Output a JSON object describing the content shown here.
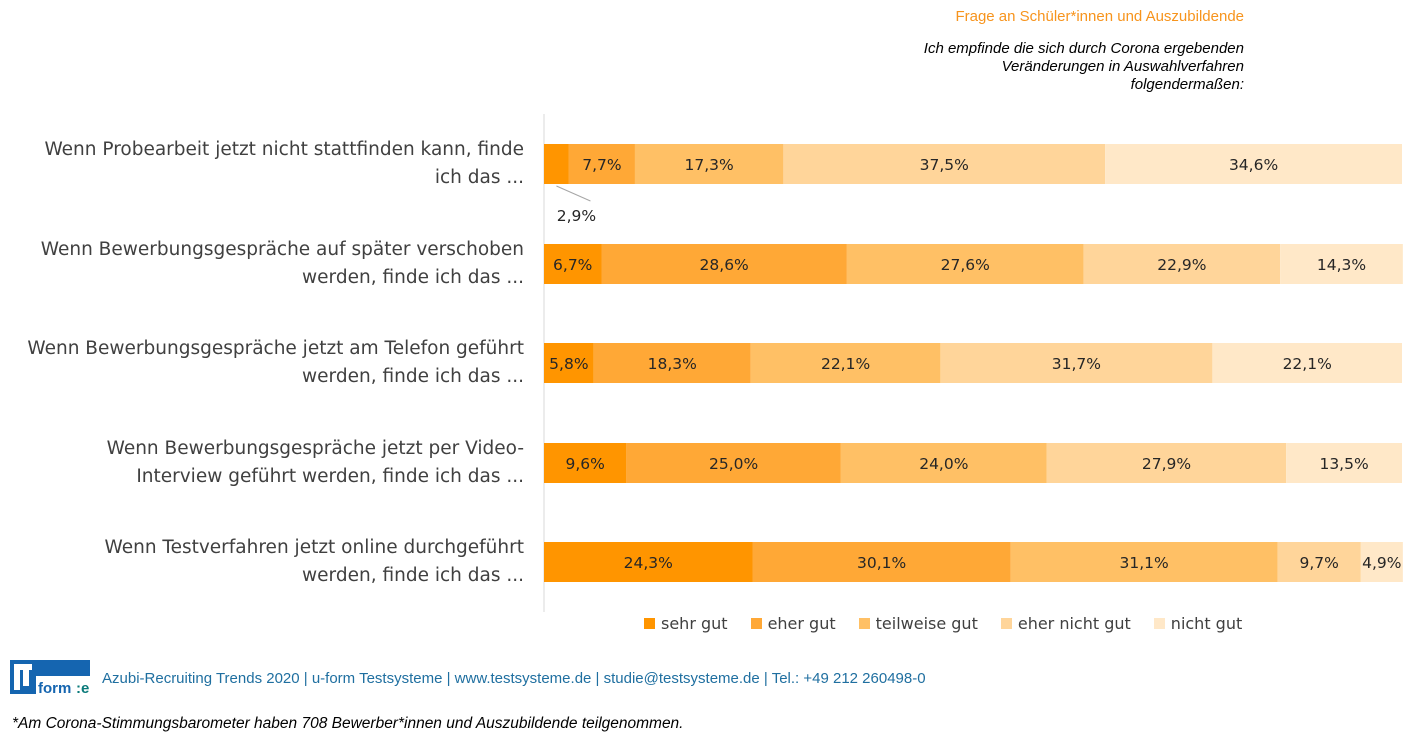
{
  "header": {
    "question_label": "Frage an Schüler*innen und Auszubildende",
    "statement": "Ich empfinde die sich durch Corona ergebenden\nVeränderungen in Auswahlverfahren\nfolgendermaßen:"
  },
  "chart_data": {
    "type": "bar",
    "orientation": "horizontal",
    "stacked": true,
    "categories": [
      "Wenn Probearbeit jetzt nicht stattfinden kann, finde ich das ...",
      "Wenn Bewerbungsgespräche auf später verschoben werden, finde ich das ...",
      "Wenn Bewerbungsgespräche jetzt am Telefon geführt werden, finde ich das ...",
      "Wenn Bewerbungsgespräche jetzt per Video-Interview geführt werden, finde ich das ...",
      "Wenn Testverfahren jetzt online durchgeführt werden, finde ich das ..."
    ],
    "category_lines": [
      [
        "Wenn Probearbeit jetzt nicht stattfinden kann, finde",
        "ich das ..."
      ],
      [
        "Wenn Bewerbungsgespräche auf später verschoben",
        "werden, finde ich das ..."
      ],
      [
        "Wenn Bewerbungsgespräche jetzt am Telefon geführt",
        "werden, finde ich das ..."
      ],
      [
        "Wenn Bewerbungsgespräche jetzt per Video-",
        "Interview geführt werden, finde ich das ..."
      ],
      [
        "Wenn Testverfahren jetzt online durchgeführt",
        "werden, finde ich das ..."
      ]
    ],
    "series": [
      {
        "name": "sehr gut",
        "color": "#ff9500",
        "values": [
          2.9,
          6.7,
          5.8,
          9.6,
          24.3
        ]
      },
      {
        "name": "eher gut",
        "color": "#ffa836",
        "values": [
          7.7,
          28.6,
          18.3,
          25.0,
          30.1
        ]
      },
      {
        "name": "teilweise gut",
        "color": "#ffc065",
        "values": [
          17.3,
          27.6,
          22.1,
          24.0,
          31.1
        ]
      },
      {
        "name": "eher nicht gut",
        "color": "#ffd59a",
        "values": [
          37.5,
          22.9,
          31.7,
          27.9,
          9.7
        ]
      },
      {
        "name": "nicht gut",
        "color": "#ffe8c8",
        "values": [
          34.6,
          14.3,
          22.1,
          13.5,
          4.9
        ]
      }
    ],
    "data_labels": [
      [
        "2,9%",
        "7,7%",
        "17,3%",
        "37,5%",
        "34,6%"
      ],
      [
        "6,7%",
        "28,6%",
        "27,6%",
        "22,9%",
        "14,3%"
      ],
      [
        "5,8%",
        "18,3%",
        "22,1%",
        "31,7%",
        "22,1%"
      ],
      [
        "9,6%",
        "25,0%",
        "24,0%",
        "27,9%",
        "13,5%"
      ],
      [
        "24,3%",
        "30,1%",
        "31,1%",
        "9,7%",
        "4,9%"
      ]
    ],
    "xlim": [
      0,
      100
    ],
    "legend_position": "bottom",
    "grid": false
  },
  "footer": {
    "logo_text": "uform:e",
    "info": "Azubi-Recruiting Trends 2020 | u-form Testsysteme | www.testsysteme.de | studie@testsysteme.de | Tel.: +49 212 260498-0",
    "footnote": "*Am Corona-Stimmungsbarometer haben 708 Bewerber*innen und Auszubildende teilgenommen."
  },
  "colors": {
    "accent": "#f7941d",
    "footer_text": "#1f6fa0",
    "logo_blue": "#1565b0"
  }
}
